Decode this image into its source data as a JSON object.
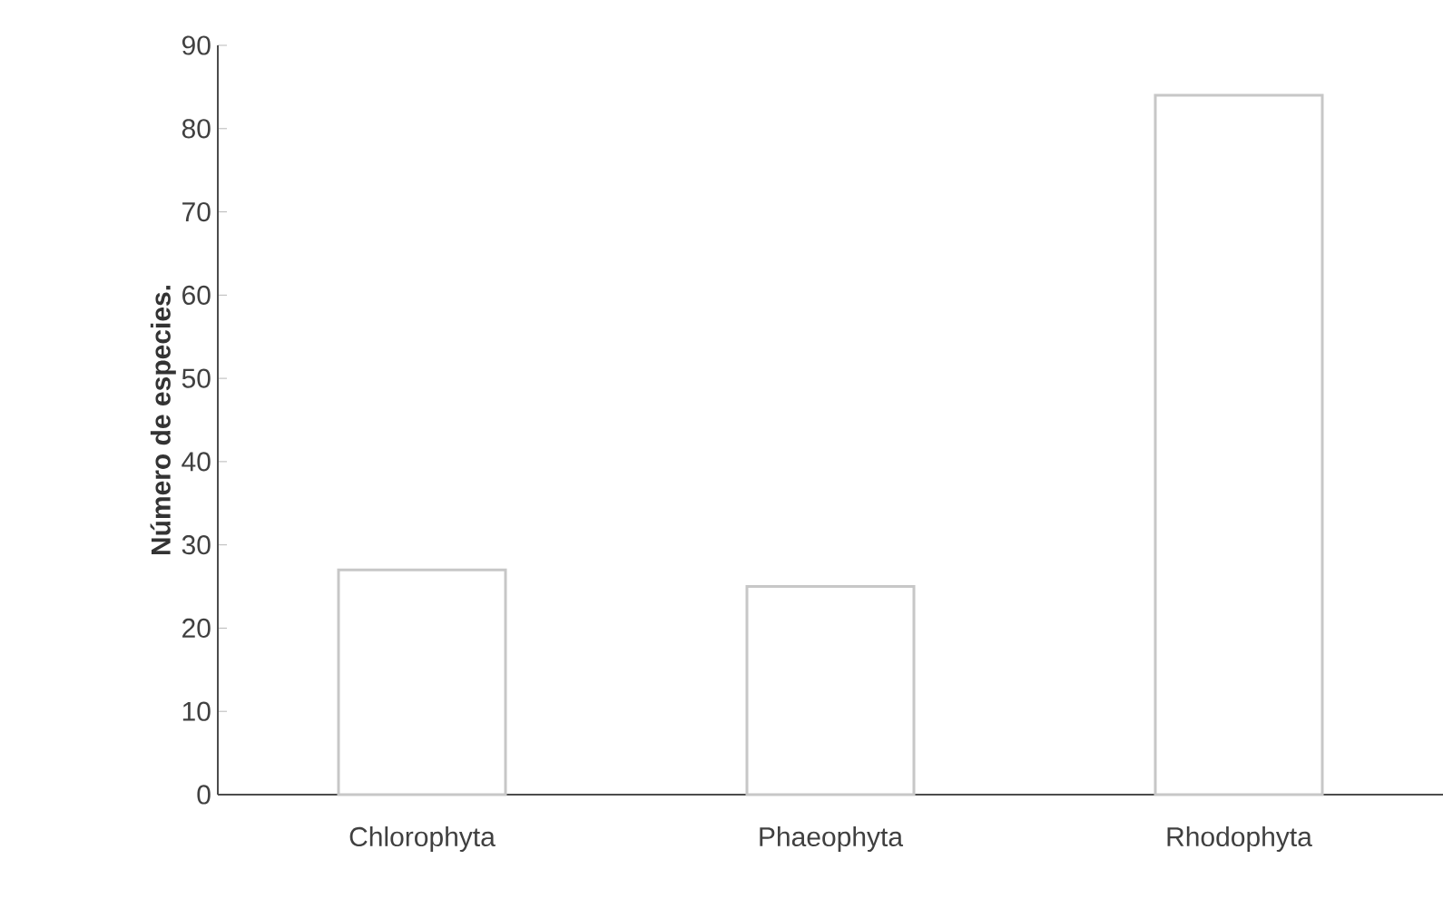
{
  "chart_data": {
    "type": "bar",
    "ylabel": "Número de especies.",
    "categories": [
      "Chlorophyta",
      "Phaeophyta",
      "Rhodophyta"
    ],
    "values": [
      27,
      25,
      84
    ],
    "color": "#ffffff",
    "ylim": [
      0,
      90
    ],
    "yticks": [
      0,
      10,
      20,
      30,
      40,
      50,
      60,
      70,
      80,
      90
    ],
    "grid": false
  }
}
